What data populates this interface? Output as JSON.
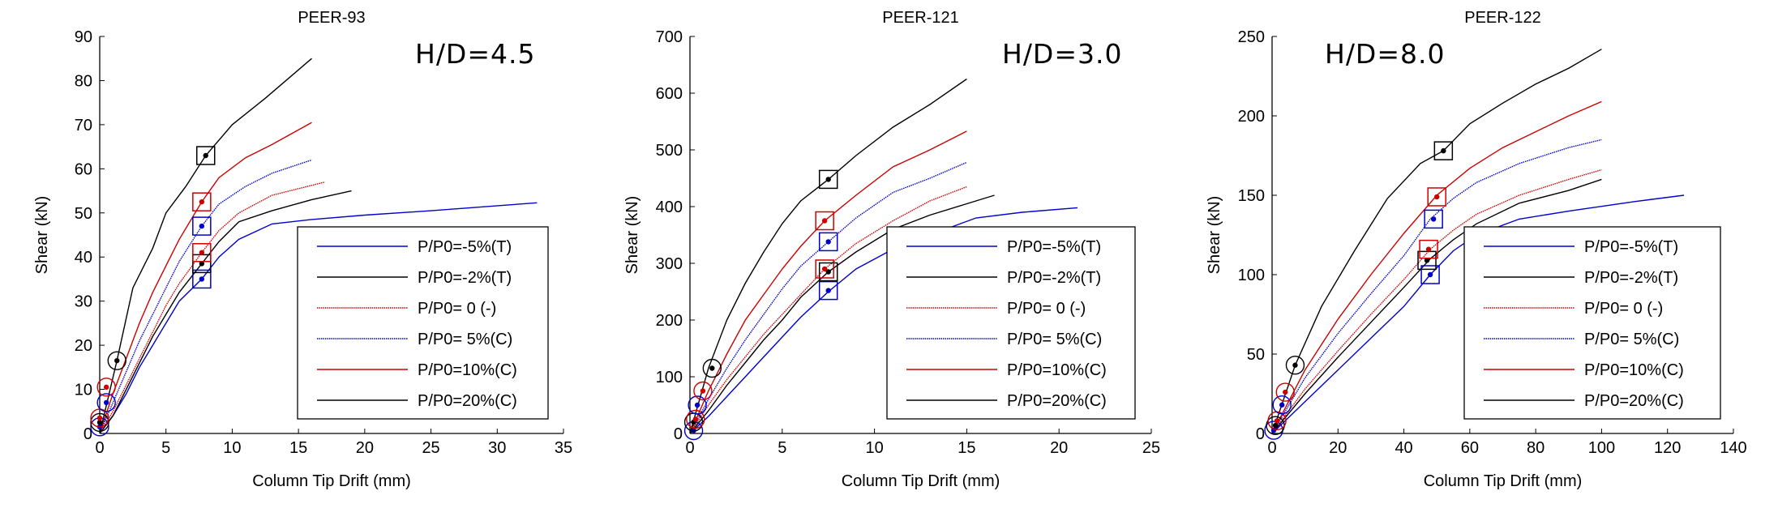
{
  "chart_data": [
    {
      "type": "line",
      "title": "PEER-93",
      "annotation": "H/D=4.5",
      "xlabel": "Column Tip Drift (mm)",
      "ylabel": "Shear (kN)",
      "xlim": [
        0,
        35
      ],
      "ylim": [
        0,
        90
      ],
      "xticks": [
        0,
        5,
        10,
        15,
        20,
        25,
        30,
        35
      ],
      "yticks": [
        0,
        10,
        20,
        30,
        40,
        50,
        60,
        70,
        80,
        90
      ],
      "grid": false,
      "legend_position": "bottom-right",
      "series": [
        {
          "name": "P/P0=-5%(T)",
          "color": "#0000cc",
          "style": "solid",
          "x": [
            0,
            1,
            2,
            3,
            4,
            5,
            6,
            7.7,
            9,
            10.5,
            13,
            16,
            20,
            25,
            33
          ],
          "y": [
            0,
            4,
            9,
            15,
            20,
            25,
            30,
            35,
            40,
            44,
            47.5,
            48.5,
            49.5,
            50.5,
            52.3
          ],
          "marker": {
            "x": 7.7,
            "y": 35,
            "shape": "square"
          },
          "origin_marker": {
            "x": 0,
            "y": 1.5,
            "shape": "circle"
          }
        },
        {
          "name": "P/P0=-2%(T)",
          "color": "#000000",
          "style": "solid",
          "x": [
            0,
            1,
            2,
            3,
            4,
            5,
            6,
            7.7,
            9,
            10.5,
            13,
            16,
            19
          ],
          "y": [
            0,
            4,
            10,
            16,
            22,
            27,
            32,
            38.5,
            43.5,
            48,
            50.5,
            53,
            55
          ],
          "marker": {
            "x": 7.7,
            "y": 38.5,
            "shape": "square"
          },
          "origin_marker": {
            "x": 0,
            "y": 2.5,
            "shape": "circle"
          }
        },
        {
          "name": "P/P0= 0 (-)",
          "color": "#cc0000",
          "style": "dotted",
          "x": [
            0,
            1,
            2,
            3,
            4,
            5,
            6,
            7.7,
            9,
            10.5,
            13,
            17
          ],
          "y": [
            0,
            5,
            11,
            17,
            23,
            29,
            34,
            41,
            46,
            50,
            54,
            57
          ],
          "marker": {
            "x": 7.7,
            "y": 41,
            "shape": "square"
          },
          "origin_marker": {
            "x": 0,
            "y": 3.5,
            "shape": "circle"
          }
        },
        {
          "name": "P/P0= 5%(C)",
          "color": "#0000cc",
          "style": "dotted",
          "x": [
            0,
            1,
            2,
            3,
            4,
            5,
            6,
            7.7,
            9,
            11,
            13,
            16
          ],
          "y": [
            0,
            7,
            14,
            21,
            27,
            33,
            39,
            47,
            52,
            56,
            59,
            62
          ],
          "marker": {
            "x": 7.7,
            "y": 47,
            "shape": "square"
          },
          "origin_marker": {
            "x": 0.5,
            "y": 7,
            "shape": "circle"
          }
        },
        {
          "name": "P/P0=10%(C)",
          "color": "#cc0000",
          "style": "solid",
          "x": [
            0,
            1,
            2,
            3,
            4,
            5,
            6,
            7.7,
            9,
            11,
            13,
            16
          ],
          "y": [
            0,
            9,
            17,
            25,
            32,
            38,
            44,
            52.5,
            58,
            62.5,
            65.5,
            70.5
          ],
          "marker": {
            "x": 7.7,
            "y": 52.5,
            "shape": "square"
          },
          "origin_marker": {
            "x": 0.5,
            "y": 10.5,
            "shape": "circle"
          }
        },
        {
          "name": "P/P0=20%(C)",
          "color": "#000000",
          "style": "solid",
          "x": [
            0,
            1.3,
            2.5,
            4,
            5,
            6.5,
            8,
            10,
            12.5,
            16
          ],
          "y": [
            0,
            16.5,
            33,
            42,
            50,
            56,
            63,
            70,
            76,
            85
          ],
          "marker": {
            "x": 8,
            "y": 63,
            "shape": "square"
          },
          "origin_marker": {
            "x": 1.3,
            "y": 16.5,
            "shape": "circle"
          }
        }
      ]
    },
    {
      "type": "line",
      "title": "PEER-121",
      "annotation": "H/D=3.0",
      "xlabel": "Column Tip Drift (mm)",
      "ylabel": "Shear (kN)",
      "xlim": [
        0,
        25
      ],
      "ylim": [
        0,
        700
      ],
      "xticks": [
        0,
        5,
        10,
        15,
        20,
        25
      ],
      "yticks": [
        0,
        100,
        200,
        300,
        400,
        500,
        600,
        700
      ],
      "grid": false,
      "legend_position": "bottom-right",
      "series": [
        {
          "name": "P/P0=-5%(T)",
          "color": "#0000cc",
          "style": "solid",
          "x": [
            0,
            1,
            2,
            3,
            4,
            5,
            6,
            7.5,
            9,
            11,
            13,
            15.5,
            18,
            21
          ],
          "y": [
            0,
            30,
            65,
            100,
            135,
            170,
            205,
            250,
            290,
            325,
            350,
            380,
            390,
            398
          ],
          "marker": {
            "x": 7.5,
            "y": 252,
            "shape": "square"
          },
          "origin_marker": {
            "x": 0.2,
            "y": 5,
            "shape": "circle"
          }
        },
        {
          "name": "P/P0=-2%(T)",
          "color": "#000000",
          "style": "solid",
          "x": [
            0,
            1,
            2,
            3,
            4,
            5,
            6,
            7.5,
            9,
            11,
            13,
            15,
            16.5
          ],
          "y": [
            0,
            40,
            85,
            125,
            165,
            200,
            240,
            285,
            320,
            360,
            385,
            405,
            420
          ],
          "marker": {
            "x": 7.5,
            "y": 285,
            "shape": "square"
          },
          "origin_marker": {
            "x": 0.2,
            "y": 20,
            "shape": "circle"
          }
        },
        {
          "name": "P/P0= 0 (-)",
          "color": "#cc0000",
          "style": "dotted",
          "x": [
            0,
            1,
            2,
            3,
            4,
            5,
            6,
            7.3,
            9,
            11,
            13,
            15
          ],
          "y": [
            0,
            50,
            95,
            135,
            175,
            210,
            245,
            290,
            335,
            375,
            410,
            435
          ],
          "marker": {
            "x": 7.3,
            "y": 290,
            "shape": "square"
          },
          "origin_marker": {
            "x": 0.3,
            "y": 25,
            "shape": "circle"
          }
        },
        {
          "name": "P/P0= 5%(C)",
          "color": "#0000cc",
          "style": "dotted",
          "x": [
            0,
            1,
            2,
            3,
            4,
            5,
            6,
            7.5,
            9,
            11,
            13,
            15
          ],
          "y": [
            0,
            60,
            115,
            165,
            210,
            255,
            295,
            338,
            380,
            425,
            450,
            478
          ],
          "marker": {
            "x": 7.5,
            "y": 338,
            "shape": "square"
          },
          "origin_marker": {
            "x": 0.4,
            "y": 50,
            "shape": "circle"
          }
        },
        {
          "name": "P/P0=10%(C)",
          "color": "#cc0000",
          "style": "solid",
          "x": [
            0,
            1,
            2,
            3,
            4,
            5,
            6,
            7.3,
            9,
            11,
            13,
            15
          ],
          "y": [
            0,
            75,
            140,
            200,
            245,
            290,
            330,
            375,
            420,
            470,
            500,
            533
          ],
          "marker": {
            "x": 7.3,
            "y": 375,
            "shape": "square"
          },
          "origin_marker": {
            "x": 0.7,
            "y": 75,
            "shape": "circle"
          }
        },
        {
          "name": "P/P0=20%(C)",
          "color": "#000000",
          "style": "solid",
          "x": [
            0,
            1,
            2,
            3,
            4,
            5,
            6,
            7.5,
            9,
            11,
            13,
            15
          ],
          "y": [
            0,
            115,
            200,
            265,
            320,
            370,
            410,
            448,
            490,
            540,
            580,
            625
          ],
          "marker": {
            "x": 7.5,
            "y": 448,
            "shape": "square"
          },
          "origin_marker": {
            "x": 1.2,
            "y": 115,
            "shape": "circle"
          }
        }
      ]
    },
    {
      "type": "line",
      "title": "PEER-122",
      "annotation": "H/D=8.0",
      "xlabel": "Column Tip Drift (mm)",
      "ylabel": "Shear (kN)",
      "xlim": [
        0,
        140
      ],
      "ylim": [
        0,
        250
      ],
      "xticks": [
        0,
        20,
        40,
        60,
        80,
        100,
        120,
        140
      ],
      "yticks": [
        0,
        50,
        100,
        150,
        200,
        250
      ],
      "grid": false,
      "legend_position": "bottom-right",
      "series": [
        {
          "name": "P/P0=-5%(T)",
          "color": "#0000cc",
          "style": "solid",
          "x": [
            0,
            10,
            20,
            30,
            40,
            48,
            55,
            62,
            75,
            90,
            100,
            110,
            125
          ],
          "y": [
            0,
            20,
            40,
            60,
            80,
            100,
            115,
            125,
            135,
            140,
            143,
            146,
            150
          ],
          "marker": {
            "x": 48,
            "y": 100,
            "shape": "square"
          },
          "origin_marker": {
            "x": 0.5,
            "y": 2,
            "shape": "circle"
          }
        },
        {
          "name": "P/P0=-2%(T)",
          "color": "#000000",
          "style": "solid",
          "x": [
            0,
            10,
            20,
            30,
            40,
            48,
            55,
            62,
            75,
            90,
            100
          ],
          "y": [
            0,
            25,
            48,
            70,
            92,
            110,
            122,
            132,
            145,
            153,
            160
          ],
          "marker": {
            "x": 47,
            "y": 109,
            "shape": "square"
          },
          "origin_marker": {
            "x": 1,
            "y": 5,
            "shape": "circle"
          }
        },
        {
          "name": "P/P0= 0 (-)",
          "color": "#cc0000",
          "style": "dotted",
          "x": [
            0,
            10,
            20,
            30,
            40,
            48,
            55,
            62,
            75,
            90,
            100
          ],
          "y": [
            0,
            28,
            52,
            75,
            97,
            116,
            128,
            138,
            150,
            160,
            166
          ],
          "marker": {
            "x": 47.5,
            "y": 116,
            "shape": "square"
          },
          "origin_marker": {
            "x": 1.5,
            "y": 8,
            "shape": "circle"
          }
        },
        {
          "name": "P/P0= 5%(C)",
          "color": "#0000cc",
          "style": "dotted",
          "x": [
            0,
            10,
            20,
            30,
            40,
            48,
            55,
            62,
            75,
            90,
            100
          ],
          "y": [
            0,
            35,
            63,
            88,
            112,
            135,
            148,
            158,
            170,
            180,
            185
          ],
          "marker": {
            "x": 49,
            "y": 135,
            "shape": "square"
          },
          "origin_marker": {
            "x": 3,
            "y": 18,
            "shape": "circle"
          }
        },
        {
          "name": "P/P0=10%(C)",
          "color": "#cc0000",
          "style": "solid",
          "x": [
            0,
            10,
            20,
            30,
            40,
            50,
            60,
            70,
            80,
            90,
            100
          ],
          "y": [
            0,
            40,
            72,
            100,
            126,
            150,
            167,
            180,
            190,
            200,
            209
          ],
          "marker": {
            "x": 50,
            "y": 149,
            "shape": "square"
          },
          "origin_marker": {
            "x": 4,
            "y": 26,
            "shape": "circle"
          }
        },
        {
          "name": "P/P0=20%(C)",
          "color": "#000000",
          "style": "solid",
          "x": [
            0,
            7,
            15,
            25,
            35,
            45,
            52,
            60,
            70,
            80,
            90,
            100
          ],
          "y": [
            0,
            43,
            80,
            115,
            148,
            170,
            178,
            195,
            208,
            220,
            230,
            242
          ],
          "marker": {
            "x": 52,
            "y": 178,
            "shape": "square"
          },
          "origin_marker": {
            "x": 7,
            "y": 43,
            "shape": "circle"
          }
        }
      ]
    }
  ]
}
